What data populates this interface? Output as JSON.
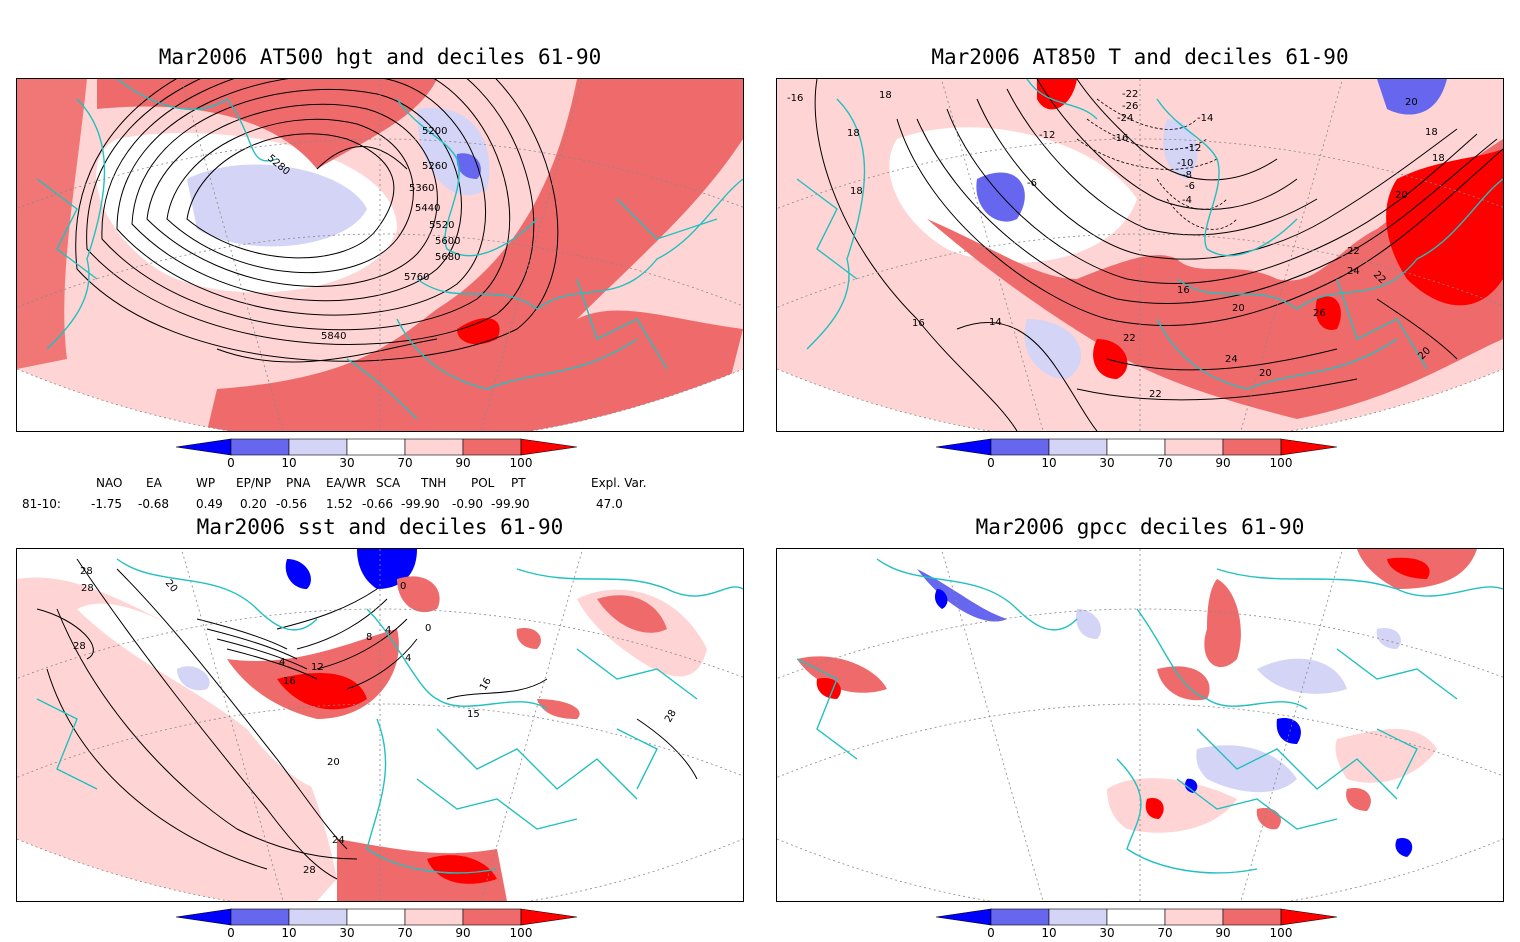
{
  "panels": [
    {
      "id": "p1",
      "title": "Mar2006 AT500 hgt and deciles 61-90",
      "contour_labels": [
        "5200",
        "5280",
        "5260",
        "5360",
        "5440",
        "5520",
        "5600",
        "5680",
        "5760",
        "5840"
      ]
    },
    {
      "id": "p2",
      "title": "Mar2006 AT850 T and deciles 61-90",
      "contour_labels": [
        "-16",
        "18",
        "18",
        "18",
        "-22",
        "-26",
        "-24",
        "-16",
        "-12",
        "-14",
        "-12",
        "-10",
        "-8",
        "-6",
        "-6",
        "-4",
        "20",
        "18",
        "18",
        "20",
        "16",
        "14",
        "16",
        "22",
        "24",
        "22",
        "26",
        "20",
        "24",
        "22",
        "20",
        "22",
        "20"
      ]
    },
    {
      "id": "p3",
      "title": "Mar2006 sst and deciles 61-90",
      "contour_labels": [
        "28",
        "28",
        "20",
        "28",
        "0",
        "4",
        "12",
        "16",
        "8",
        "4",
        "0",
        "4",
        "16",
        "15",
        "28",
        "20",
        "24",
        "28"
      ]
    },
    {
      "id": "p4",
      "title": "Mar2006 gpcc deciles 61-90",
      "contour_labels": []
    }
  ],
  "colorbar": {
    "ticks": [
      "0",
      "10",
      "30",
      "70",
      "90",
      "100"
    ],
    "colors": [
      "#0000ff",
      "#6666ee",
      "#d4d4f7",
      "#ffffff",
      "#ffd4d4",
      "#ef6b6b",
      "#ff0000"
    ]
  },
  "indices": {
    "headers": [
      "NAO",
      "EA",
      "WP",
      "EP/NP",
      "PNA",
      "EA/WR",
      "SCA",
      "TNH",
      "POL",
      "PT",
      "Expl. Var."
    ],
    "row_label": "81-10:",
    "values": [
      "-1.75",
      "-0.68",
      "0.49",
      "0.20",
      "-0.56",
      "1.52",
      "-0.66",
      "-99.90",
      "-0.90",
      "-99.90",
      "47.0"
    ]
  },
  "colors": {
    "coast": "#22c0c0",
    "contour": "#000000",
    "grid": "#888888"
  }
}
